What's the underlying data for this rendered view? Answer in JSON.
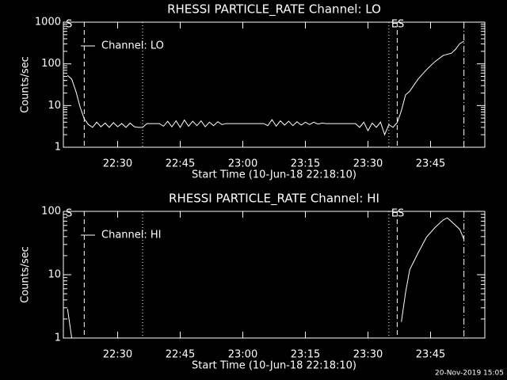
{
  "chart_data": [
    {
      "type": "line",
      "title": "RHESSI PARTICLE_RATE Channel: LO",
      "xlabel": "Start Time (10-Jun-18 22:18:10)",
      "ylabel": "Counts/sec",
      "log_y": true,
      "legend": "upper left",
      "color": "#ffffff",
      "xlim": [
        "22:17",
        "23:58"
      ],
      "xticks": [
        "22:30",
        "22:45",
        "23:00",
        "23:15",
        "23:30",
        "23:45"
      ],
      "ylim": [
        1,
        1000
      ],
      "yticks": [
        1,
        10,
        100,
        1000
      ],
      "markers": [
        {
          "x": "22:22",
          "style": "dashed"
        },
        {
          "x": "22:36",
          "style": "dotted"
        },
        {
          "x": "23:35",
          "style": "dotted"
        },
        {
          "x": "23:37",
          "style": "dashed"
        },
        {
          "x": "23:53",
          "style": "dashdot"
        }
      ],
      "annotations": [
        {
          "x": "22:17",
          "text": "S"
        },
        {
          "x": "23:35",
          "text": "ES"
        }
      ],
      "x": [
        "22:18",
        "22:19",
        "22:20",
        "22:21",
        "22:22",
        "22:23",
        "22:24",
        "22:25",
        "22:26",
        "22:27",
        "22:28",
        "22:29",
        "22:30",
        "22:31",
        "22:32",
        "22:33",
        "22:34",
        "22:35",
        "22:36",
        "22:37",
        "22:40",
        "22:41",
        "22:42",
        "22:43",
        "22:44",
        "22:45",
        "22:46",
        "22:47",
        "22:48",
        "22:49",
        "22:50",
        "22:51",
        "22:52",
        "22:53",
        "22:54",
        "22:55",
        "22:56",
        "23:00",
        "23:05",
        "23:06",
        "23:07",
        "23:08",
        "23:09",
        "23:10",
        "23:11",
        "23:12",
        "23:13",
        "23:14",
        "23:15",
        "23:16",
        "23:17",
        "23:18",
        "23:19",
        "23:20",
        "23:25",
        "23:27",
        "23:28",
        "23:29",
        "23:30",
        "23:31",
        "23:32",
        "23:33",
        "23:34",
        "23:35",
        "23:36",
        "23:37",
        "23:38",
        "23:39",
        "23:40",
        "23:42",
        "23:44",
        "23:46",
        "23:48",
        "23:50",
        "23:51",
        "23:52",
        "23:53"
      ],
      "series": [
        {
          "name": "Channel: LO",
          "color": "#ffffff",
          "values": [
            53,
            43,
            22,
            9.3,
            4.8,
            3.5,
            3.0,
            4.0,
            3.1,
            3.8,
            3.0,
            3.9,
            3.1,
            3.7,
            3.0,
            3.8,
            3.1,
            3.0,
            3.0,
            3.7,
            3.7,
            3.2,
            4.2,
            3.1,
            4.3,
            3.0,
            4.5,
            3.2,
            4.2,
            3.3,
            4.3,
            3.1,
            4.0,
            3.3,
            4.1,
            3.5,
            3.7,
            3.7,
            3.7,
            3.3,
            4.6,
            3.2,
            4.3,
            3.4,
            4.2,
            3.3,
            4.1,
            3.4,
            4.0,
            3.5,
            4.0,
            3.6,
            3.8,
            3.7,
            3.7,
            3.7,
            3.0,
            4.0,
            2.5,
            3.8,
            3.0,
            4.0,
            2.0,
            3.5,
            3.0,
            3.9,
            7.5,
            18,
            22,
            43,
            72,
            112,
            159,
            180,
            225,
            306,
            350
          ]
        }
      ]
    },
    {
      "type": "line",
      "title": "RHESSI PARTICLE_RATE Channel: HI",
      "xlabel": "Start Time (10-Jun-18 22:18:10)",
      "ylabel": "Counts/sec",
      "log_y": true,
      "legend": "upper left",
      "color": "#ffffff",
      "xlim": [
        "22:17",
        "23:58"
      ],
      "xticks": [
        "22:30",
        "22:45",
        "23:00",
        "23:15",
        "23:30",
        "23:45"
      ],
      "ylim": [
        1,
        100
      ],
      "yticks": [
        1,
        10,
        100
      ],
      "markers": [
        {
          "x": "22:22",
          "style": "dashed"
        },
        {
          "x": "22:36",
          "style": "dotted"
        },
        {
          "x": "23:35",
          "style": "dotted"
        },
        {
          "x": "23:37",
          "style": "dashed"
        },
        {
          "x": "23:53",
          "style": "dashdot"
        }
      ],
      "annotations": [
        {
          "x": "22:17",
          "text": "S"
        },
        {
          "x": "23:35",
          "text": "ES"
        }
      ],
      "x": [
        "22:18",
        "22:19",
        "23:30",
        "23:38",
        "23:39",
        "23:40",
        "23:42",
        "23:44",
        "23:46",
        "23:48",
        "23:49",
        "23:50",
        "23:52",
        "23:53"
      ],
      "series": [
        {
          "name": "Channel: HI",
          "color": "#ffffff",
          "values": [
            2.9,
            1,
            null,
            1.8,
            5.2,
            12,
            22,
            39,
            55,
            73,
            79,
            69,
            52,
            36
          ]
        }
      ]
    }
  ],
  "footer": "20-Nov-2019 15:05"
}
